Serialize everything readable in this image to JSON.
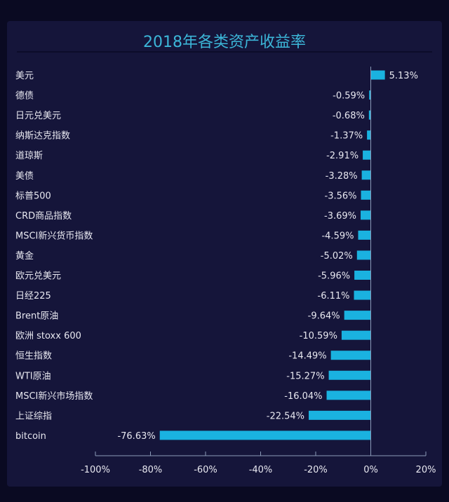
{
  "chart_data": {
    "type": "bar",
    "orientation": "horizontal",
    "title": "2018年各类资产收益率",
    "categories": [
      "美元",
      "德债",
      "日元兑美元",
      "纳斯达克指数",
      "道琼斯",
      "美债",
      "标普500",
      "CRD商品指数",
      "MSCI新兴货币指数",
      "黄金",
      "欧元兑美元",
      "日经225",
      "Brent原油",
      "欧洲 stoxx 600",
      "恒生指数",
      "WTI原油",
      "MSCI新兴市场指数",
      "上证综指",
      "bitcoin"
    ],
    "values": [
      5.13,
      -0.59,
      -0.68,
      -1.37,
      -2.91,
      -3.28,
      -3.56,
      -3.69,
      -4.59,
      -5.02,
      -5.96,
      -6.11,
      -9.64,
      -10.59,
      -14.49,
      -15.27,
      -16.04,
      -22.54,
      -76.63
    ],
    "value_labels": [
      "5.13%",
      "-0.59%",
      "-0.68%",
      "-1.37%",
      "-2.91%",
      "-3.28%",
      "-3.56%",
      "-3.69%",
      "-4.59%",
      "-5.02%",
      "-5.96%",
      "-6.11%",
      "-9.64%",
      "-10.59%",
      "-14.49%",
      "-15.27%",
      "-16.04%",
      "-22.54%",
      "-76.63%"
    ],
    "xlim": [
      -100,
      20
    ],
    "xticks": [
      -100,
      -80,
      -60,
      -40,
      -20,
      0,
      20
    ],
    "xtick_labels": [
      "-100%",
      "-80%",
      "-60%",
      "-40%",
      "-20%",
      "0%",
      "20%"
    ],
    "xlabel": "",
    "ylabel": "",
    "grid": false,
    "colors": {
      "bar": "#1ab2e0",
      "title": "#3cb6d8",
      "axis": "#8a9ab8"
    }
  }
}
